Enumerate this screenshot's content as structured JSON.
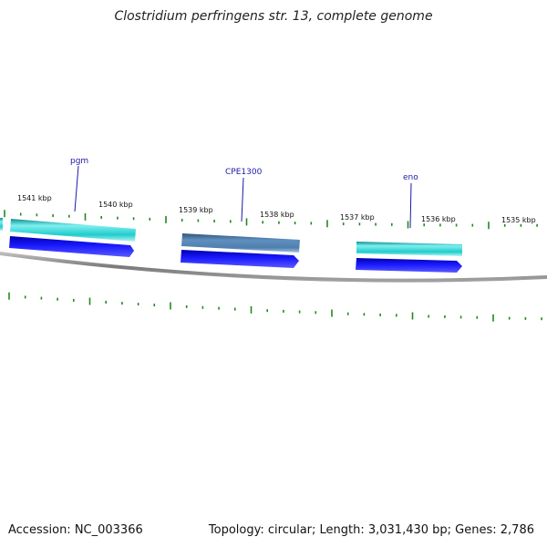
{
  "title": "Clostridium perfringens str. 13, complete genome",
  "footer": {
    "accession": "Accession: NC_003366",
    "summary": "Topology: circular; Length: 3,031,430 bp; Genes: 2,786"
  },
  "colors": {
    "backbone": "#8a8a8a",
    "tick": "#1f8a1f",
    "gene_label": "#1a1aa8",
    "cds_blue": "#1111ee",
    "gene_cyan": "#22cccc",
    "gene_steel": "#4f7faf"
  },
  "ruler": {
    "labels": [
      "1541 kbp",
      "1540 kbp",
      "1539 kbp",
      "1538 kbp",
      "1537 kbp",
      "1536 kbp",
      "1535 kbp"
    ]
  },
  "genes": [
    {
      "label": "pgm",
      "color": "#22cccc"
    },
    {
      "label": "CPE1300",
      "color": "#4f7faf"
    },
    {
      "label": "eno",
      "color": "#22cccc"
    }
  ]
}
